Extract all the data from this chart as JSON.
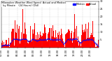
{
  "title_line1": "Milwaukee Weather Wind Speed",
  "title_line2": "Actual and Median",
  "title_line3": "by Minute",
  "title_line4": "(24 Hours) (Old)",
  "legend_actual": "Actual",
  "legend_median": "Median",
  "actual_color": "#ff0000",
  "median_color": "#0000ff",
  "background_color": "#ffffff",
  "n_points": 1440,
  "y_max": 30,
  "y_ticks": [
    5,
    10,
    15,
    20,
    25,
    30
  ],
  "title_fontsize": 2.5,
  "legend_fontsize": 2.5,
  "tick_fontsize": 2.5,
  "seed": 42
}
